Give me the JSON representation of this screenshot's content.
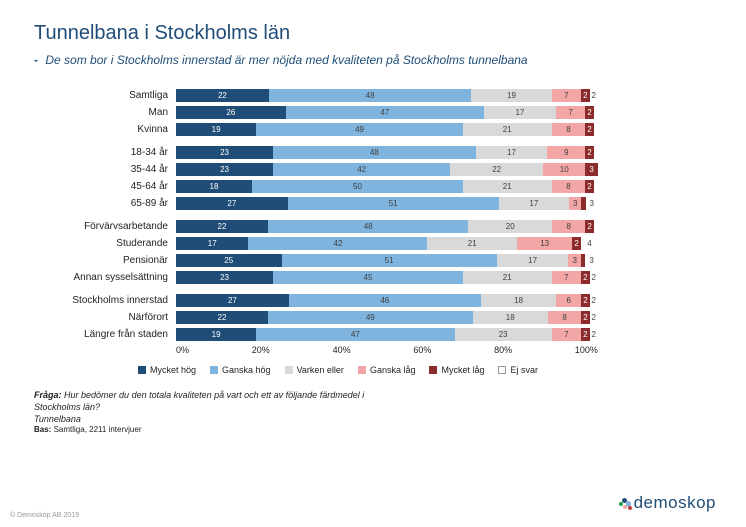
{
  "title": "Tunnelbana i Stockholms län",
  "subtitle_dash": "-",
  "subtitle": "De som bor i Stockholms innerstad är mer nöjda med kvaliteten på Stockholms tunnelbana",
  "colors": {
    "mycket_hog": "#1f4d78",
    "ganska_hog": "#7fb4de",
    "varken": "#d9d9d9",
    "ganska_lag": "#f2a6a6",
    "mycket_lag": "#8b2b2b",
    "ej_svar": "#ffffff",
    "text_on_dark": "#ffffff",
    "text_on_light": "#404040",
    "background": "#ffffff"
  },
  "series": [
    {
      "key": "mycket_hog",
      "label": "Mycket hög"
    },
    {
      "key": "ganska_hog",
      "label": "Ganska hög"
    },
    {
      "key": "varken",
      "label": "Varken eller"
    },
    {
      "key": "ganska_lag",
      "label": "Ganska låg"
    },
    {
      "key": "mycket_lag",
      "label": "Mycket låg"
    },
    {
      "key": "ej_svar",
      "label": "Ej svar"
    }
  ],
  "axis_ticks": [
    "0%",
    "20%",
    "40%",
    "60%",
    "80%",
    "100%"
  ],
  "groups": [
    {
      "rows": [
        {
          "label": "Samtliga",
          "values": [
            22,
            48,
            19,
            7,
            2,
            2
          ]
        },
        {
          "label": "Man",
          "values": [
            26,
            47,
            17,
            7,
            2,
            1
          ]
        },
        {
          "label": "Kvinna",
          "values": [
            19,
            49,
            21,
            8,
            2,
            1
          ]
        }
      ]
    },
    {
      "rows": [
        {
          "label": "18-34 år",
          "values": [
            23,
            48,
            17,
            9,
            2,
            1
          ]
        },
        {
          "label": "35-44 år",
          "values": [
            23,
            42,
            22,
            10,
            3,
            0
          ]
        },
        {
          "label": "45-64 år",
          "values": [
            18,
            50,
            21,
            8,
            2,
            1
          ]
        },
        {
          "label": "65-89 år",
          "values": [
            27,
            51,
            17,
            3,
            1,
            3
          ]
        }
      ]
    },
    {
      "rows": [
        {
          "label": "Förvärvsarbetande",
          "values": [
            22,
            48,
            20,
            8,
            2,
            1
          ]
        },
        {
          "label": "Studerande",
          "values": [
            17,
            42,
            21,
            13,
            2,
            4
          ]
        },
        {
          "label": "Pensionär",
          "values": [
            25,
            51,
            17,
            3,
            1,
            3
          ]
        },
        {
          "label": "Annan sysselsättning",
          "values": [
            23,
            45,
            21,
            7,
            2,
            2
          ]
        }
      ]
    },
    {
      "rows": [
        {
          "label": "Stockholms innerstad",
          "values": [
            27,
            46,
            18,
            6,
            2,
            2
          ]
        },
        {
          "label": "Närförort",
          "values": [
            22,
            49,
            18,
            8,
            2,
            2
          ]
        },
        {
          "label": "Längre från staden",
          "values": [
            19,
            47,
            23,
            7,
            2,
            2
          ]
        }
      ]
    }
  ],
  "value_label_min_pct": 2,
  "footnote": {
    "question_label": "Fråga:",
    "question": "Hur bedömer du den totala kvaliteten på vart och ett av följande färdmedel i Stockholms län?",
    "mode": "Tunnelbana",
    "bas_label": "Bas:",
    "bas": "Samtliga, 2211 intervjuer"
  },
  "logo": {
    "brand": "demoskop",
    "dot_colors": [
      "#1fa04a",
      "#1f4d78",
      "#7fb4de",
      "#f2a6a6",
      "#c04040"
    ]
  },
  "copyright": "© Demoskop AB 2019"
}
